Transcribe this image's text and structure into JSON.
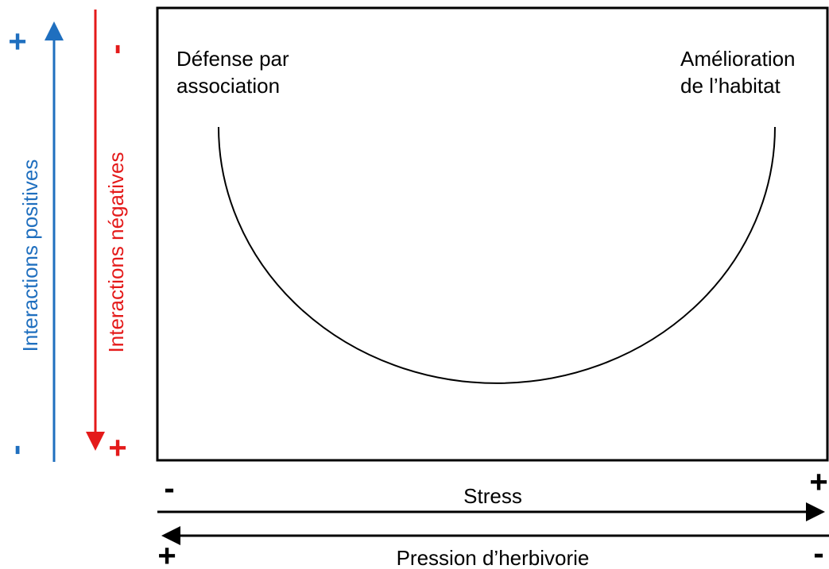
{
  "left_axes": {
    "positive": {
      "label": "Interactions positives",
      "top": "+",
      "bottom": "-"
    },
    "negative": {
      "label": "Interactions négatives",
      "top": "-",
      "bottom": "+"
    }
  },
  "panel": {
    "left_label": [
      "Défense par",
      "association"
    ],
    "right_label": [
      "Amélioration",
      "de l’habitat"
    ]
  },
  "bottom_axes": {
    "stress": {
      "label": "Stress",
      "left": "-",
      "right": "+"
    },
    "herbivory": {
      "label": "Pression d’herbivorie",
      "left": "+",
      "right": "-"
    }
  }
}
